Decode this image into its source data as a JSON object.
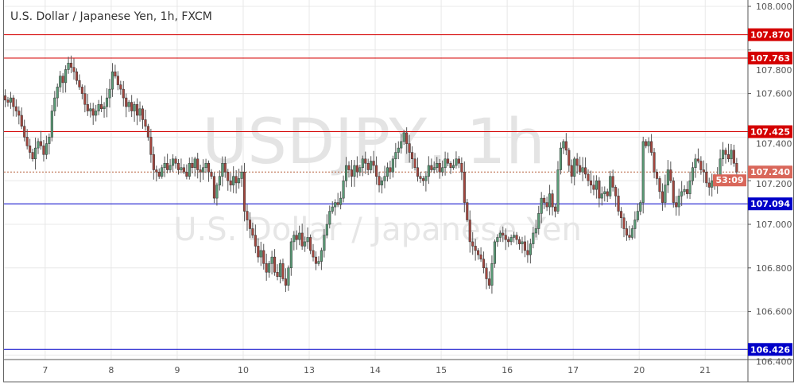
{
  "header": {
    "title": "U.S. Dollar / Japanese Yen, 1h, FXCM"
  },
  "watermark": {
    "symbol": "USDJPY, 1h",
    "name": "U.S. Dollar / Japanese Yen"
  },
  "chart_data": {
    "type": "candlestick",
    "title": "U.S. Dollar / Japanese Yen, 1h, FXCM",
    "ylim": [
      106.39,
      108.03
    ],
    "y_ticks": [
      "108.000",
      "107.800",
      "107.600",
      "107.400",
      "107.200",
      "107.000",
      "106.800",
      "106.600",
      "106.400"
    ],
    "y_tick_values": [
      108.0,
      107.8,
      107.6,
      107.4,
      107.2,
      107.0,
      106.8,
      106.6,
      106.4
    ],
    "x_ticks": [
      {
        "label": "7",
        "index": 16
      },
      {
        "label": "8",
        "index": 40
      },
      {
        "label": "9",
        "index": 64
      },
      {
        "label": "10",
        "index": 88
      },
      {
        "label": "13",
        "index": 112
      },
      {
        "label": "14",
        "index": 136
      },
      {
        "label": "15",
        "index": 160
      },
      {
        "label": "16",
        "index": 184
      },
      {
        "label": "17",
        "index": 208
      },
      {
        "label": "20",
        "index": 232
      },
      {
        "label": "21",
        "index": 256
      }
    ],
    "grid": true,
    "colors": {
      "up": "#5a9c77",
      "down": "#a4463e",
      "resistance": "#d40000",
      "support": "#0000c8",
      "current": "#d9675a"
    },
    "closes": [
      107.57,
      107.56,
      107.58,
      107.54,
      107.52,
      107.5,
      107.45,
      107.4,
      107.36,
      107.33,
      107.3,
      107.35,
      107.38,
      107.36,
      107.32,
      107.37,
      107.4,
      107.52,
      107.58,
      107.63,
      107.68,
      107.65,
      107.71,
      107.74,
      107.72,
      107.7,
      107.66,
      107.63,
      107.6,
      107.55,
      107.52,
      107.53,
      107.5,
      107.52,
      107.55,
      107.53,
      107.54,
      107.58,
      107.62,
      107.7,
      107.68,
      107.64,
      107.62,
      107.58,
      107.54,
      107.56,
      107.52,
      107.55,
      107.5,
      107.53,
      107.48,
      107.45,
      107.4,
      107.32,
      107.25,
      107.24,
      107.22,
      107.26,
      107.28,
      107.25,
      107.27,
      107.3,
      107.28,
      107.25,
      107.26,
      107.24,
      107.22,
      107.28,
      107.26,
      107.3,
      107.25,
      107.24,
      107.26,
      107.28,
      107.24,
      107.22,
      107.12,
      107.18,
      107.22,
      107.28,
      107.24,
      107.2,
      107.18,
      107.22,
      107.19,
      107.21,
      107.24,
      107.06,
      107.02,
      106.98,
      106.95,
      106.9,
      106.85,
      106.88,
      106.82,
      106.78,
      106.82,
      106.85,
      106.78,
      106.76,
      106.82,
      106.75,
      106.72,
      106.8,
      106.92,
      106.95,
      106.93,
      106.96,
      106.9,
      106.92,
      106.94,
      106.88,
      106.85,
      106.82,
      106.83,
      106.88,
      106.95,
      107.0,
      107.06,
      107.08,
      107.1,
      107.09,
      107.12,
      107.2,
      107.27,
      107.25,
      107.22,
      107.27,
      107.24,
      107.26,
      107.3,
      107.28,
      107.25,
      107.29,
      107.27,
      107.22,
      107.18,
      107.2,
      107.22,
      107.26,
      107.24,
      107.3,
      107.33,
      107.35,
      107.38,
      107.42,
      107.37,
      107.33,
      107.3,
      107.26,
      107.22,
      107.21,
      107.2,
      107.22,
      107.27,
      107.25,
      107.26,
      107.28,
      107.24,
      107.26,
      107.3,
      107.28,
      107.26,
      107.27,
      107.3,
      107.28,
      107.24,
      107.1,
      107.02,
      106.92,
      106.9,
      106.88,
      106.86,
      106.84,
      106.8,
      106.75,
      106.72,
      106.82,
      106.92,
      106.94,
      106.96,
      106.95,
      106.93,
      106.92,
      106.94,
      106.95,
      106.93,
      106.91,
      106.92,
      106.88,
      106.86,
      106.91,
      106.96,
      106.98,
      107.05,
      107.12,
      107.1,
      107.08,
      107.14,
      107.08,
      107.06,
      107.25,
      107.35,
      107.38,
      107.34,
      107.27,
      107.22,
      107.3,
      107.27,
      107.24,
      107.26,
      107.23,
      107.2,
      107.18,
      107.16,
      107.2,
      107.12,
      107.14,
      107.15,
      107.13,
      107.22,
      107.17,
      107.13,
      107.06,
      107.03,
      106.98,
      106.95,
      106.94,
      106.98,
      107.02,
      107.06,
      107.1,
      107.38,
      107.36,
      107.38,
      107.33,
      107.24,
      107.21,
      107.15,
      107.1,
      107.18,
      107.25,
      107.2,
      107.1,
      107.08,
      107.13,
      107.15,
      107.16,
      107.14,
      107.2,
      107.26,
      107.3,
      107.29,
      107.25,
      107.24,
      107.19,
      107.17,
      107.2,
      107.18,
      107.22,
      107.3,
      107.34,
      107.32,
      107.3,
      107.34,
      107.28,
      107.24
    ],
    "horizontal_levels": [
      {
        "price": 107.87,
        "label": "107.870",
        "kind": "resistance"
      },
      {
        "price": 107.763,
        "label": "107.763",
        "kind": "resistance"
      },
      {
        "price": 107.425,
        "label": "107.425",
        "kind": "resistance"
      },
      {
        "price": 107.094,
        "label": "107.094",
        "kind": "support"
      },
      {
        "price": 106.426,
        "label": "106.426",
        "kind": "support"
      }
    ],
    "current_price": {
      "price": 107.24,
      "label": "107.240",
      "countdown": "53:09"
    }
  }
}
